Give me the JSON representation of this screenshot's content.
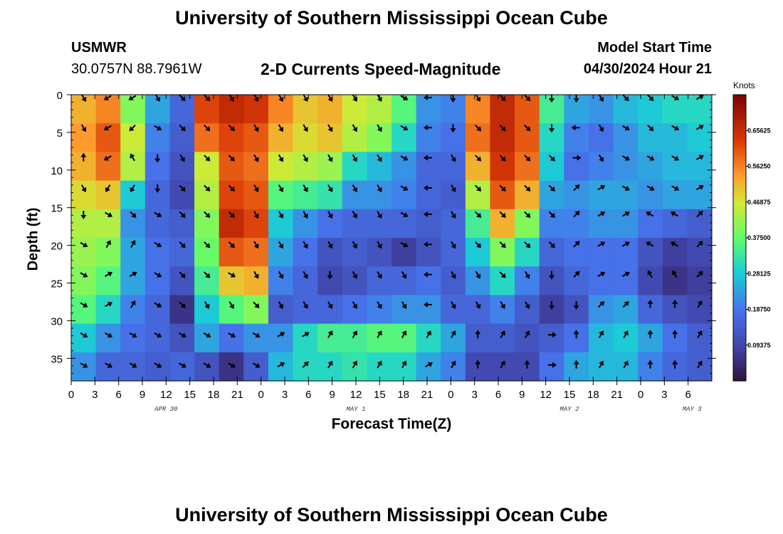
{
  "header": {
    "title": "University of Southern Mississippi Ocean Cube",
    "station": "USMWR",
    "coordinates": "30.0757N  88.7961W",
    "subtitle": "2-D Currents Speed-Magnitude",
    "model_start_label": "Model Start Time",
    "model_start_value": "04/30/2024 Hour 21"
  },
  "footer": {
    "title": "University of Southern Mississippi Ocean Cube"
  },
  "colorbar": {
    "units": "Knots"
  },
  "colors": {
    "low": "#2c1b5a",
    "mid": "#2ee6a4",
    "high": "#7a0403"
  },
  "chart_data": {
    "type": "heatmap",
    "title": "2-D Currents Speed-Magnitude",
    "xlabel": "Forecast Time(Z)",
    "ylabel": "Depth (ft)",
    "x_range_hours": [
      0,
      81
    ],
    "y_range_ft": [
      0,
      38
    ],
    "y_inverted": true,
    "x_ticks": [
      "0",
      "3",
      "6",
      "9",
      "12",
      "15",
      "18",
      "21",
      "0",
      "3",
      "6",
      "9",
      "12",
      "15",
      "18",
      "21",
      "0",
      "3",
      "6",
      "9",
      "12",
      "15",
      "18",
      "21",
      "0",
      "3",
      "6"
    ],
    "y_ticks": [
      0,
      5,
      10,
      15,
      20,
      25,
      30,
      35
    ],
    "date_labels": [
      {
        "label": "APR 30",
        "hour": 12
      },
      {
        "label": "MAY 1",
        "hour": 36
      },
      {
        "label": "MAY 2",
        "hour": 63
      },
      {
        "label": "MAY 3",
        "hour": 78.5
      }
    ],
    "colorbar_ticks": [
      "0.65625",
      "0.56250",
      "0.46875",
      "0.37500",
      "0.28125",
      "0.18750",
      "0.09375"
    ],
    "colorbar_range": [
      0.0,
      0.75
    ],
    "speed_knots_by_column": [
      [
        0.52,
        0.54,
        0.52,
        0.48,
        0.44,
        0.42,
        0.4,
        0.36,
        0.28,
        0.22
      ],
      [
        0.56,
        0.6,
        0.58,
        0.5,
        0.44,
        0.4,
        0.36,
        0.3,
        0.22,
        0.16
      ],
      [
        0.4,
        0.46,
        0.44,
        0.28,
        0.22,
        0.24,
        0.24,
        0.2,
        0.18,
        0.16
      ],
      [
        0.24,
        0.2,
        0.18,
        0.16,
        0.16,
        0.18,
        0.18,
        0.16,
        0.16,
        0.14
      ],
      [
        0.16,
        0.14,
        0.12,
        0.1,
        0.14,
        0.16,
        0.12,
        0.06,
        0.12,
        0.16
      ],
      [
        0.62,
        0.58,
        0.46,
        0.44,
        0.4,
        0.38,
        0.34,
        0.28,
        0.24,
        0.12
      ],
      [
        0.66,
        0.62,
        0.6,
        0.62,
        0.66,
        0.6,
        0.5,
        0.36,
        0.18,
        0.06
      ],
      [
        0.64,
        0.6,
        0.58,
        0.6,
        0.62,
        0.58,
        0.52,
        0.4,
        0.22,
        0.14
      ],
      [
        0.56,
        0.52,
        0.46,
        0.36,
        0.28,
        0.24,
        0.2,
        0.14,
        0.22,
        0.26
      ],
      [
        0.5,
        0.48,
        0.44,
        0.34,
        0.22,
        0.18,
        0.16,
        0.16,
        0.3,
        0.3
      ],
      [
        0.52,
        0.5,
        0.42,
        0.32,
        0.18,
        0.12,
        0.1,
        0.16,
        0.34,
        0.3
      ],
      [
        0.46,
        0.44,
        0.3,
        0.22,
        0.16,
        0.14,
        0.12,
        0.18,
        0.34,
        0.32
      ],
      [
        0.44,
        0.4,
        0.26,
        0.22,
        0.16,
        0.12,
        0.16,
        0.2,
        0.36,
        0.3
      ],
      [
        0.36,
        0.3,
        0.22,
        0.2,
        0.16,
        0.08,
        0.16,
        0.22,
        0.36,
        0.3
      ],
      [
        0.22,
        0.2,
        0.16,
        0.16,
        0.14,
        0.12,
        0.18,
        0.22,
        0.3,
        0.24
      ],
      [
        0.2,
        0.18,
        0.16,
        0.14,
        0.16,
        0.16,
        0.14,
        0.16,
        0.24,
        0.2
      ],
      [
        0.56,
        0.58,
        0.52,
        0.44,
        0.34,
        0.28,
        0.22,
        0.16,
        0.14,
        0.1
      ],
      [
        0.66,
        0.66,
        0.64,
        0.6,
        0.52,
        0.4,
        0.3,
        0.2,
        0.14,
        0.1
      ],
      [
        0.6,
        0.6,
        0.58,
        0.52,
        0.4,
        0.3,
        0.2,
        0.14,
        0.12,
        0.1
      ],
      [
        0.34,
        0.3,
        0.28,
        0.24,
        0.2,
        0.16,
        0.12,
        0.08,
        0.14,
        0.18
      ],
      [
        0.24,
        0.2,
        0.18,
        0.22,
        0.2,
        0.18,
        0.16,
        0.12,
        0.18,
        0.24
      ],
      [
        0.22,
        0.18,
        0.2,
        0.24,
        0.22,
        0.18,
        0.18,
        0.22,
        0.26,
        0.26
      ],
      [
        0.26,
        0.22,
        0.22,
        0.24,
        0.22,
        0.18,
        0.18,
        0.24,
        0.28,
        0.26
      ],
      [
        0.28,
        0.26,
        0.24,
        0.22,
        0.18,
        0.12,
        0.1,
        0.16,
        0.24,
        0.2
      ],
      [
        0.3,
        0.26,
        0.26,
        0.24,
        0.16,
        0.08,
        0.06,
        0.12,
        0.18,
        0.16
      ],
      [
        0.3,
        0.28,
        0.26,
        0.24,
        0.14,
        0.1,
        0.08,
        0.1,
        0.14,
        0.14
      ]
    ],
    "vector_rows_depth_ft": [
      0,
      4,
      8,
      12,
      15.5,
      19.5,
      23.5,
      27.5,
      31.5,
      35.5
    ],
    "vector_angles_deg": [
      [
        -60,
        -60,
        90,
        -60,
        -90,
        -30,
        -30,
        -30,
        -30,
        -30
      ],
      [
        -150,
        -150,
        -150,
        -120,
        -30,
        60,
        30,
        30,
        -30,
        -30
      ],
      [
        -150,
        -135,
        120,
        -120,
        -45,
        60,
        30,
        60,
        -30,
        -30
      ],
      [
        -60,
        -30,
        -90,
        -90,
        -30,
        -30,
        -30,
        -30,
        -30,
        -30
      ],
      [
        -45,
        -45,
        -60,
        -45,
        -45,
        -45,
        -45,
        -45,
        -30,
        -30
      ],
      [
        -45,
        -45,
        -45,
        -45,
        -45,
        -45,
        -45,
        -60,
        -30,
        -30
      ],
      [
        -60,
        -45,
        -45,
        -45,
        -45,
        -45,
        -30,
        -60,
        -30,
        -30
      ],
      [
        -60,
        -60,
        -60,
        -60,
        -60,
        -60,
        -60,
        -45,
        -30,
        -30
      ],
      [
        -60,
        -60,
        -60,
        -60,
        -60,
        -60,
        -60,
        -60,
        30,
        30
      ],
      [
        -60,
        -60,
        -60,
        -60,
        -60,
        -60,
        -60,
        -60,
        30,
        45
      ],
      [
        -60,
        -60,
        -60,
        -60,
        -60,
        -60,
        -90,
        -60,
        60,
        60
      ],
      [
        -60,
        -60,
        -60,
        -60,
        -60,
        -60,
        -60,
        -60,
        60,
        60
      ],
      [
        -60,
        -60,
        -60,
        -60,
        -60,
        -60,
        -60,
        -60,
        60,
        60
      ],
      [
        -30,
        -30,
        -30,
        -30,
        -30,
        -30,
        -60,
        -60,
        60,
        60
      ],
      [
        180,
        180,
        180,
        180,
        180,
        180,
        180,
        180,
        60,
        30
      ],
      [
        -90,
        -90,
        -60,
        -60,
        -60,
        -60,
        -60,
        -60,
        60,
        60
      ],
      [
        -60,
        -45,
        -45,
        -45,
        -45,
        -45,
        -60,
        -60,
        90,
        90
      ],
      [
        -45,
        -45,
        -45,
        -45,
        -45,
        -45,
        -45,
        -60,
        60,
        60
      ],
      [
        -45,
        -45,
        -45,
        -45,
        -45,
        -45,
        -60,
        -60,
        60,
        90
      ],
      [
        -90,
        -90,
        -45,
        -45,
        -45,
        -45,
        -90,
        -90,
        0,
        0
      ],
      [
        -90,
        180,
        0,
        45,
        45,
        45,
        45,
        -90,
        90,
        90
      ],
      [
        -60,
        -60,
        -60,
        30,
        30,
        30,
        30,
        45,
        60,
        60
      ],
      [
        -45,
        -30,
        -30,
        -30,
        30,
        30,
        30,
        45,
        60,
        60
      ],
      [
        -45,
        -45,
        -30,
        -30,
        150,
        150,
        120,
        90,
        90,
        90
      ],
      [
        -30,
        -30,
        -30,
        -30,
        150,
        150,
        120,
        90,
        90,
        90
      ],
      [
        30,
        30,
        30,
        30,
        45,
        45,
        45,
        60,
        60,
        60
      ]
    ]
  }
}
